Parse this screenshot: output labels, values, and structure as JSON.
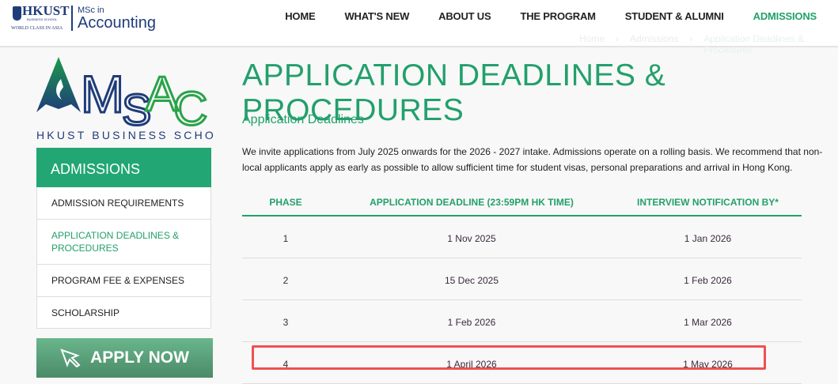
{
  "header": {
    "logo": {
      "school": "HKUST",
      "sub": "BUSINESS SCHOOL",
      "tagline": "WORLD CLASS IN ASIA",
      "program_line1": "MSc in",
      "program_line2": "Accounting"
    },
    "nav": [
      {
        "label": "HOME"
      },
      {
        "label": "WHAT'S NEW"
      },
      {
        "label": "ABOUT US"
      },
      {
        "label": "THE PROGRAM"
      },
      {
        "label": "STUDENT & ALUMNI"
      },
      {
        "label": "ADMISSIONS",
        "active": true
      }
    ],
    "breadcrumb": [
      "Home",
      "Admissions",
      "Application Deadlines & Procedures"
    ]
  },
  "sidebar": {
    "logo_text": "MSAC",
    "logo_caption": "HKUST BUSINESS SCHOOL",
    "title": "ADMISSIONS",
    "items": [
      {
        "label": "ADMISSION REQUIREMENTS"
      },
      {
        "label": "APPLICATION DEADLINES & PROCEDURES",
        "active": true
      },
      {
        "label": "PROGRAM FEE & EXPENSES"
      },
      {
        "label": "SCHOLARSHIP"
      }
    ],
    "apply_label": "APPLY NOW"
  },
  "main": {
    "title": "APPLICATION DEADLINES & PROCEDURES",
    "subtitle": "Application Deadlines",
    "intro": "We invite applications from July 2025 onwards for the 2026 - 2027 intake. Admissions operate on a rolling basis. We recommend that non-local applicants apply as early as possible to allow sufficient time for student visas, personal preparations and arrival in Hong Kong.",
    "table": {
      "headers": [
        "PHASE",
        "APPLICATION DEADLINE (23:59PM HK TIME)",
        "INTERVIEW NOTIFICATION BY*"
      ],
      "rows": [
        [
          "1",
          "1 Nov 2025",
          "1 Jan 2026"
        ],
        [
          "2",
          "15 Dec 2025",
          "1 Feb 2026"
        ],
        [
          "3",
          "1 Feb 2026",
          "1 Mar 2026"
        ],
        [
          "4",
          "1 April 2026",
          "1 May 2026"
        ]
      ]
    }
  },
  "colors": {
    "accent": "#22a06b",
    "navy": "#1f3c7a",
    "highlight": "#f05050"
  }
}
